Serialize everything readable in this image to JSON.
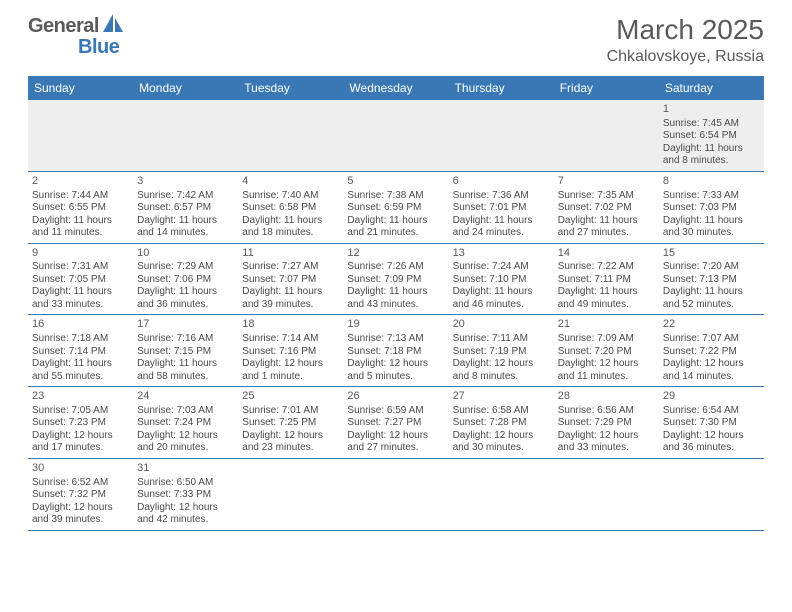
{
  "logo": {
    "text1": "General",
    "text2": "Blue"
  },
  "title": "March 2025",
  "location": "Chkalovskoye, Russia",
  "colors": {
    "header_bg": "#3a78b5",
    "header_text": "#ffffff",
    "body_text": "#4a4a4a",
    "title_text": "#5a5a5a",
    "first_row_bg": "#eeeeee",
    "row_border": "#3a78b5",
    "page_bg": "#ffffff"
  },
  "day_headers": [
    "Sunday",
    "Monday",
    "Tuesday",
    "Wednesday",
    "Thursday",
    "Friday",
    "Saturday"
  ],
  "weeks": [
    [
      null,
      null,
      null,
      null,
      null,
      null,
      {
        "n": "1",
        "sunrise": "Sunrise: 7:45 AM",
        "sunset": "Sunset: 6:54 PM",
        "daylight": "Daylight: 11 hours and 8 minutes."
      }
    ],
    [
      {
        "n": "2",
        "sunrise": "Sunrise: 7:44 AM",
        "sunset": "Sunset: 6:55 PM",
        "daylight": "Daylight: 11 hours and 11 minutes."
      },
      {
        "n": "3",
        "sunrise": "Sunrise: 7:42 AM",
        "sunset": "Sunset: 6:57 PM",
        "daylight": "Daylight: 11 hours and 14 minutes."
      },
      {
        "n": "4",
        "sunrise": "Sunrise: 7:40 AM",
        "sunset": "Sunset: 6:58 PM",
        "daylight": "Daylight: 11 hours and 18 minutes."
      },
      {
        "n": "5",
        "sunrise": "Sunrise: 7:38 AM",
        "sunset": "Sunset: 6:59 PM",
        "daylight": "Daylight: 11 hours and 21 minutes."
      },
      {
        "n": "6",
        "sunrise": "Sunrise: 7:36 AM",
        "sunset": "Sunset: 7:01 PM",
        "daylight": "Daylight: 11 hours and 24 minutes."
      },
      {
        "n": "7",
        "sunrise": "Sunrise: 7:35 AM",
        "sunset": "Sunset: 7:02 PM",
        "daylight": "Daylight: 11 hours and 27 minutes."
      },
      {
        "n": "8",
        "sunrise": "Sunrise: 7:33 AM",
        "sunset": "Sunset: 7:03 PM",
        "daylight": "Daylight: 11 hours and 30 minutes."
      }
    ],
    [
      {
        "n": "9",
        "sunrise": "Sunrise: 7:31 AM",
        "sunset": "Sunset: 7:05 PM",
        "daylight": "Daylight: 11 hours and 33 minutes."
      },
      {
        "n": "10",
        "sunrise": "Sunrise: 7:29 AM",
        "sunset": "Sunset: 7:06 PM",
        "daylight": "Daylight: 11 hours and 36 minutes."
      },
      {
        "n": "11",
        "sunrise": "Sunrise: 7:27 AM",
        "sunset": "Sunset: 7:07 PM",
        "daylight": "Daylight: 11 hours and 39 minutes."
      },
      {
        "n": "12",
        "sunrise": "Sunrise: 7:26 AM",
        "sunset": "Sunset: 7:09 PM",
        "daylight": "Daylight: 11 hours and 43 minutes."
      },
      {
        "n": "13",
        "sunrise": "Sunrise: 7:24 AM",
        "sunset": "Sunset: 7:10 PM",
        "daylight": "Daylight: 11 hours and 46 minutes."
      },
      {
        "n": "14",
        "sunrise": "Sunrise: 7:22 AM",
        "sunset": "Sunset: 7:11 PM",
        "daylight": "Daylight: 11 hours and 49 minutes."
      },
      {
        "n": "15",
        "sunrise": "Sunrise: 7:20 AM",
        "sunset": "Sunset: 7:13 PM",
        "daylight": "Daylight: 11 hours and 52 minutes."
      }
    ],
    [
      {
        "n": "16",
        "sunrise": "Sunrise: 7:18 AM",
        "sunset": "Sunset: 7:14 PM",
        "daylight": "Daylight: 11 hours and 55 minutes."
      },
      {
        "n": "17",
        "sunrise": "Sunrise: 7:16 AM",
        "sunset": "Sunset: 7:15 PM",
        "daylight": "Daylight: 11 hours and 58 minutes."
      },
      {
        "n": "18",
        "sunrise": "Sunrise: 7:14 AM",
        "sunset": "Sunset: 7:16 PM",
        "daylight": "Daylight: 12 hours and 1 minute."
      },
      {
        "n": "19",
        "sunrise": "Sunrise: 7:13 AM",
        "sunset": "Sunset: 7:18 PM",
        "daylight": "Daylight: 12 hours and 5 minutes."
      },
      {
        "n": "20",
        "sunrise": "Sunrise: 7:11 AM",
        "sunset": "Sunset: 7:19 PM",
        "daylight": "Daylight: 12 hours and 8 minutes."
      },
      {
        "n": "21",
        "sunrise": "Sunrise: 7:09 AM",
        "sunset": "Sunset: 7:20 PM",
        "daylight": "Daylight: 12 hours and 11 minutes."
      },
      {
        "n": "22",
        "sunrise": "Sunrise: 7:07 AM",
        "sunset": "Sunset: 7:22 PM",
        "daylight": "Daylight: 12 hours and 14 minutes."
      }
    ],
    [
      {
        "n": "23",
        "sunrise": "Sunrise: 7:05 AM",
        "sunset": "Sunset: 7:23 PM",
        "daylight": "Daylight: 12 hours and 17 minutes."
      },
      {
        "n": "24",
        "sunrise": "Sunrise: 7:03 AM",
        "sunset": "Sunset: 7:24 PM",
        "daylight": "Daylight: 12 hours and 20 minutes."
      },
      {
        "n": "25",
        "sunrise": "Sunrise: 7:01 AM",
        "sunset": "Sunset: 7:25 PM",
        "daylight": "Daylight: 12 hours and 23 minutes."
      },
      {
        "n": "26",
        "sunrise": "Sunrise: 6:59 AM",
        "sunset": "Sunset: 7:27 PM",
        "daylight": "Daylight: 12 hours and 27 minutes."
      },
      {
        "n": "27",
        "sunrise": "Sunrise: 6:58 AM",
        "sunset": "Sunset: 7:28 PM",
        "daylight": "Daylight: 12 hours and 30 minutes."
      },
      {
        "n": "28",
        "sunrise": "Sunrise: 6:56 AM",
        "sunset": "Sunset: 7:29 PM",
        "daylight": "Daylight: 12 hours and 33 minutes."
      },
      {
        "n": "29",
        "sunrise": "Sunrise: 6:54 AM",
        "sunset": "Sunset: 7:30 PM",
        "daylight": "Daylight: 12 hours and 36 minutes."
      }
    ],
    [
      {
        "n": "30",
        "sunrise": "Sunrise: 6:52 AM",
        "sunset": "Sunset: 7:32 PM",
        "daylight": "Daylight: 12 hours and 39 minutes."
      },
      {
        "n": "31",
        "sunrise": "Sunrise: 6:50 AM",
        "sunset": "Sunset: 7:33 PM",
        "daylight": "Daylight: 12 hours and 42 minutes."
      },
      null,
      null,
      null,
      null,
      null
    ]
  ]
}
